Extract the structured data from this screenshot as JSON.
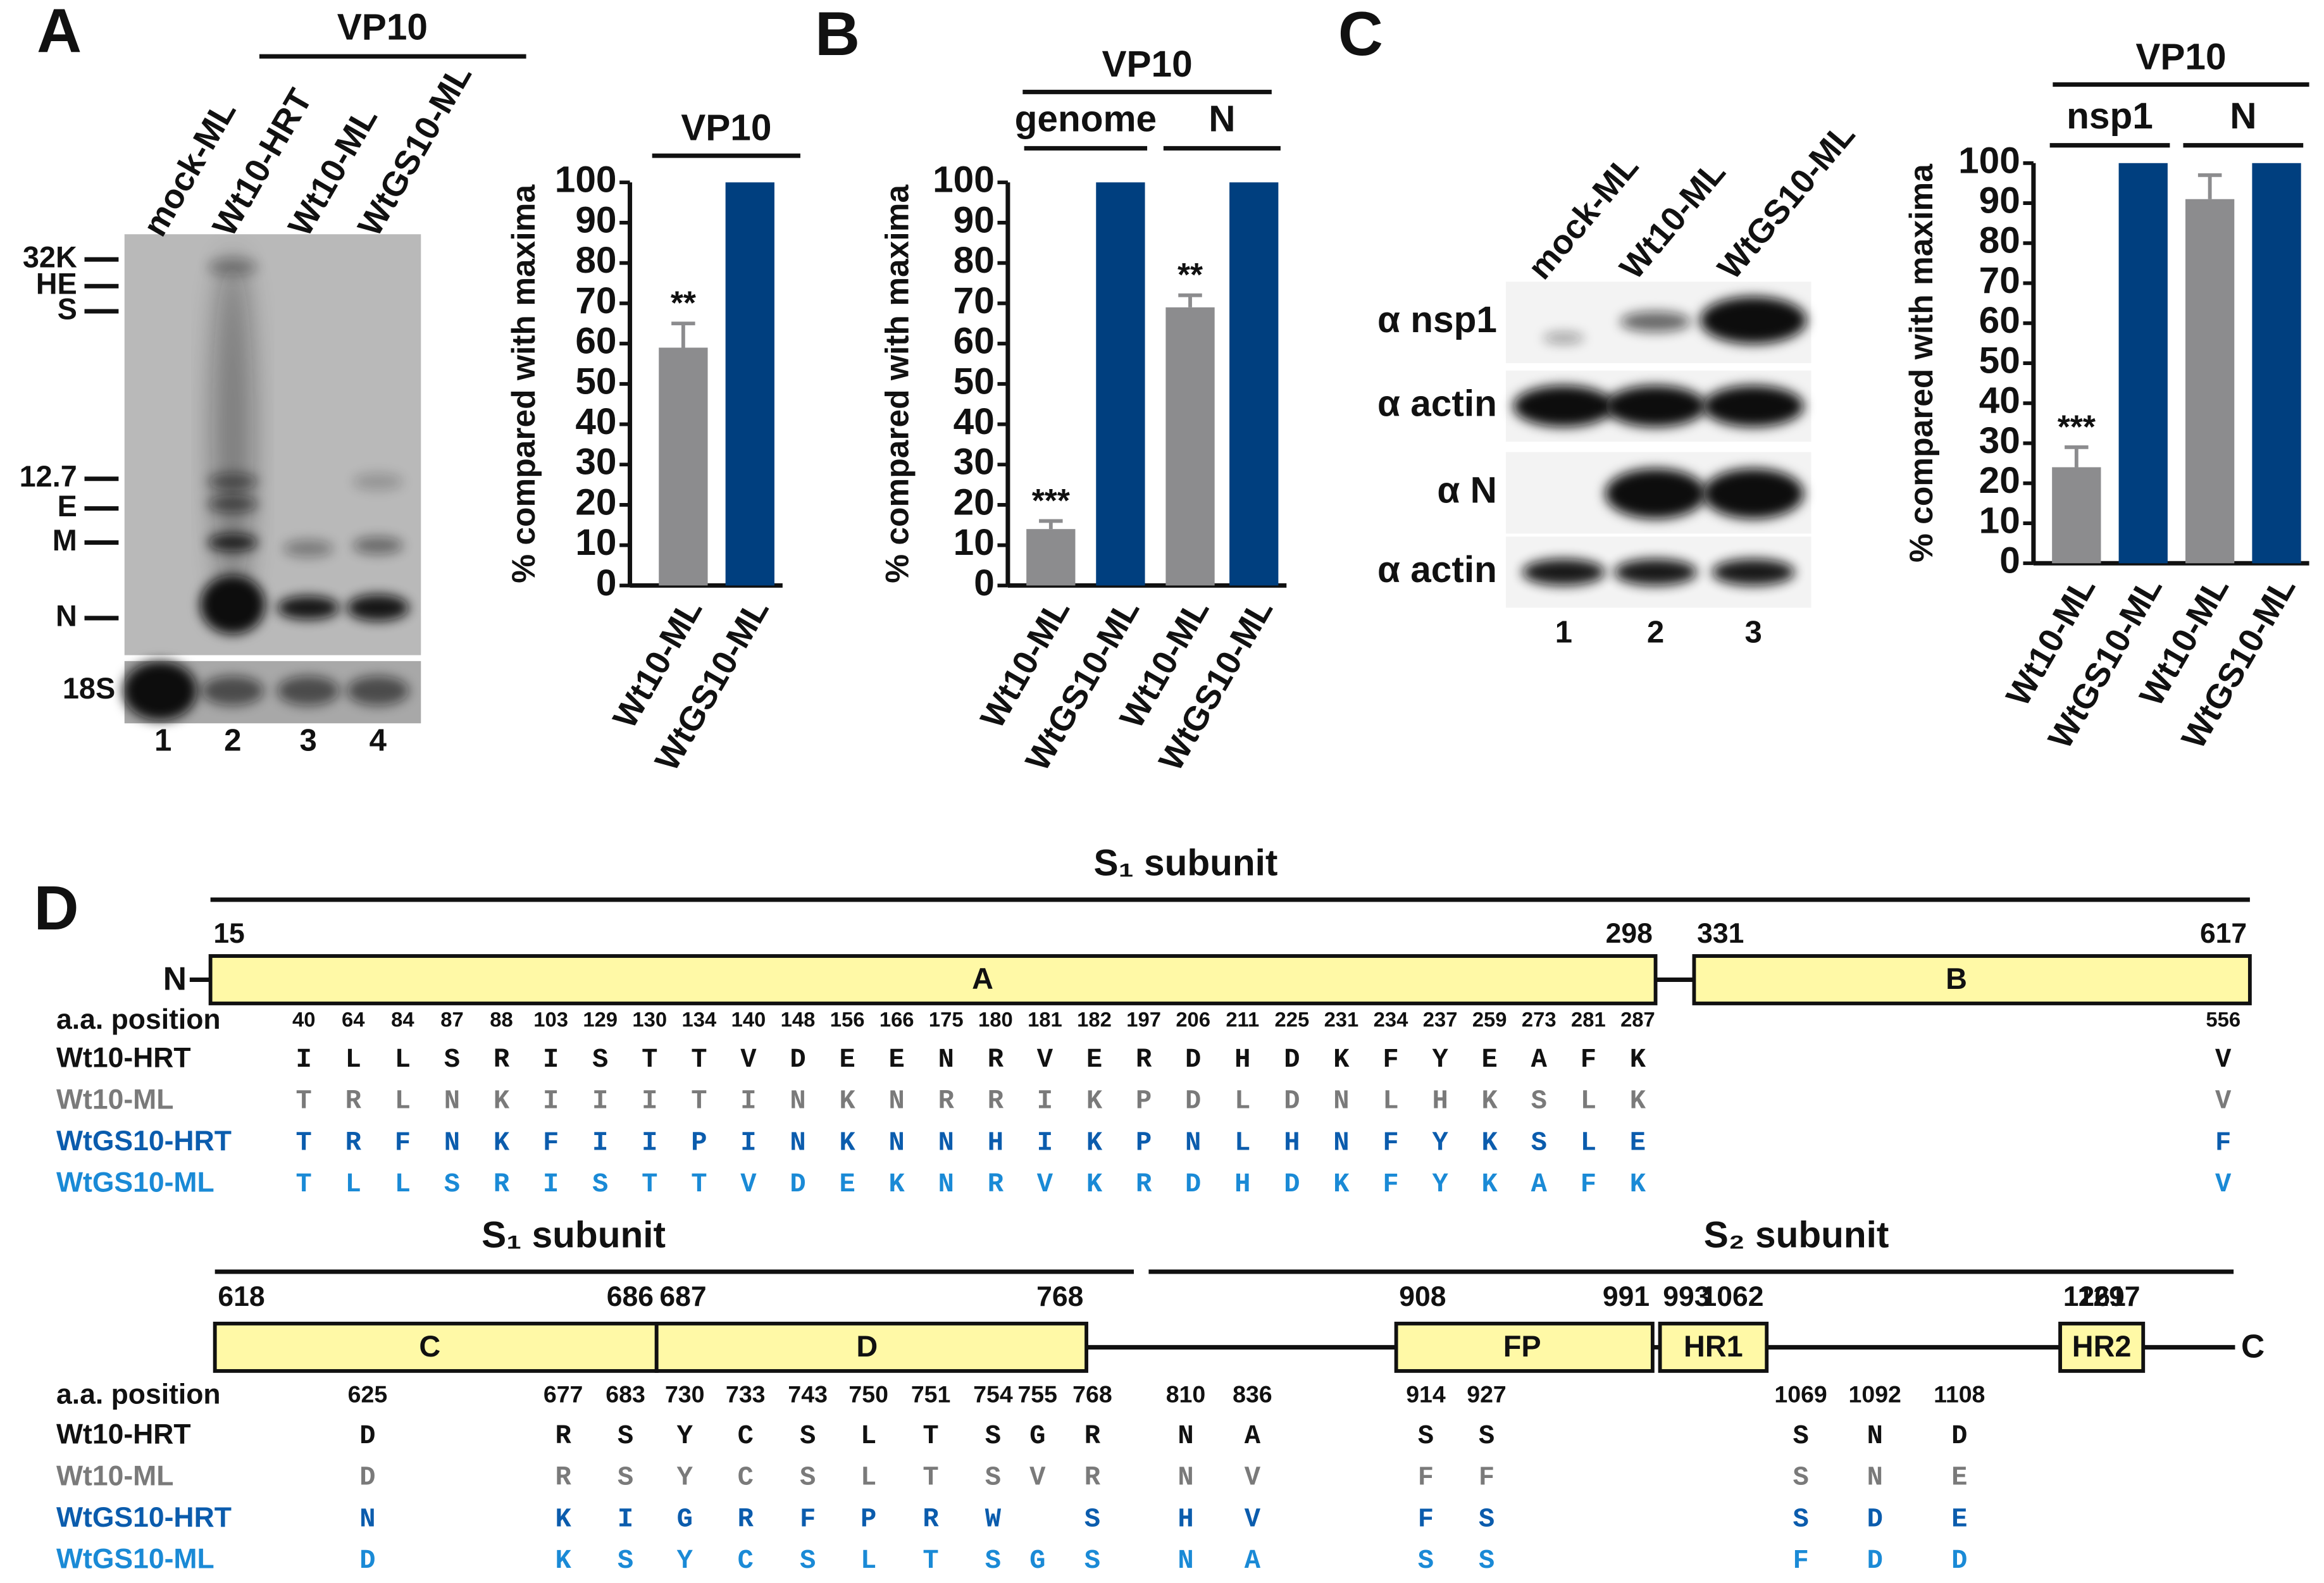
{
  "panel_labels": [
    "A",
    "B",
    "C",
    "D"
  ],
  "chart_data": [
    {
      "type": "bar",
      "title": "VP10",
      "ylabel": "% compared with maxima",
      "categories": [
        "Wt10-ML",
        "WtGS10-ML"
      ],
      "values": [
        59,
        100
      ],
      "errors": [
        6,
        0
      ],
      "colors": [
        "#8c8c8e",
        "#003f7f"
      ],
      "significance": [
        "**",
        null
      ],
      "ylim": [
        0,
        100
      ],
      "yticks": [
        0,
        10,
        20,
        30,
        40,
        50,
        60,
        70,
        80,
        90,
        100
      ]
    },
    {
      "type": "bar",
      "title": "VP10",
      "groups": [
        "genome",
        "N"
      ],
      "ylabel": "% compared with maxima",
      "categories": [
        "Wt10-ML",
        "WtGS10-ML",
        "Wt10-ML",
        "WtGS10-ML"
      ],
      "values": [
        14,
        100,
        69,
        100
      ],
      "errors": [
        2,
        0,
        3,
        0
      ],
      "colors": [
        "#8c8c8e",
        "#003f7f",
        "#8c8c8e",
        "#003f7f"
      ],
      "significance": [
        "***",
        null,
        "**",
        null
      ],
      "ylim": [
        0,
        100
      ],
      "yticks": [
        0,
        10,
        20,
        30,
        40,
        50,
        60,
        70,
        80,
        90,
        100
      ]
    },
    {
      "type": "bar",
      "title": "VP10",
      "groups": [
        "nsp1",
        "N"
      ],
      "ylabel": "% compared with maxima",
      "categories": [
        "Wt10-ML",
        "WtGS10-ML",
        "Wt10-ML",
        "WtGS10-ML"
      ],
      "values": [
        24,
        100,
        91,
        100
      ],
      "errors": [
        5,
        0,
        6,
        0
      ],
      "colors": [
        "#8c8c8e",
        "#003f7f",
        "#8c8c8e",
        "#003f7f"
      ],
      "significance": [
        "***",
        null,
        null,
        null
      ],
      "ylim": [
        0,
        100
      ],
      "yticks": [
        0,
        10,
        20,
        30,
        40,
        50,
        60,
        70,
        80,
        90,
        100
      ]
    }
  ],
  "blots": [
    {
      "lanes": [
        "mock-ML",
        "Wt10-HRT",
        "Wt10-ML",
        "WtGS10-ML"
      ],
      "header": "VP10",
      "markers": [
        "32K",
        "HE",
        "S",
        "12.7",
        "E",
        "M",
        "N"
      ],
      "loading": "18S",
      "lane_numbers": [
        "1",
        "2",
        "3",
        "4"
      ]
    },
    {
      "lanes": [
        "mock-ML",
        "Wt10-ML",
        "WtGS10-ML"
      ],
      "rows": [
        "α nsp1",
        "α actin",
        "α N",
        "α actin"
      ],
      "lane_numbers": [
        "1",
        "2",
        "3"
      ]
    }
  ],
  "diagram": {
    "rows": [
      {
        "subunits": [
          "S₁ subunit"
        ],
        "n_terminus": "N",
        "domains": [
          {
            "name": "A",
            "start": 15,
            "end": 298
          },
          {
            "name": "B",
            "start": 331,
            "end": 617
          }
        ],
        "position_label": "a.a. position",
        "positions": [
          40,
          64,
          84,
          87,
          88,
          103,
          129,
          130,
          134,
          140,
          148,
          156,
          166,
          175,
          180,
          181,
          182,
          197,
          206,
          211,
          225,
          231,
          234,
          237,
          259,
          273,
          281,
          287,
          556
        ],
        "strains": [
          {
            "name": "Wt10-HRT",
            "color": "#111111",
            "residues": [
              "I",
              "L",
              "L",
              "S",
              "R",
              "I",
              "S",
              "T",
              "T",
              "V",
              "D",
              "E",
              "E",
              "N",
              "R",
              "V",
              "E",
              "R",
              "D",
              "H",
              "D",
              "K",
              "F",
              "Y",
              "E",
              "A",
              "F",
              "K",
              "V"
            ]
          },
          {
            "name": "Wt10-ML",
            "color": "#7a7a7a",
            "residues": [
              "T",
              "R",
              "L",
              "N",
              "K",
              "I",
              "I",
              "I",
              "T",
              "I",
              "N",
              "K",
              "N",
              "R",
              "R",
              "I",
              "K",
              "P",
              "D",
              "L",
              "D",
              "N",
              "L",
              "H",
              "K",
              "S",
              "L",
              "K",
              "V"
            ]
          },
          {
            "name": "WtGS10-HRT",
            "color": "#0b5cad",
            "residues": [
              "T",
              "R",
              "F",
              "N",
              "K",
              "F",
              "I",
              "I",
              "P",
              "I",
              "N",
              "K",
              "N",
              "N",
              "H",
              "I",
              "K",
              "P",
              "N",
              "L",
              "H",
              "N",
              "F",
              "Y",
              "K",
              "S",
              "L",
              "E",
              "F"
            ]
          },
          {
            "name": "WtGS10-ML",
            "color": "#1a8ad6",
            "residues": [
              "T",
              "L",
              "L",
              "S",
              "R",
              "I",
              "S",
              "T",
              "T",
              "V",
              "D",
              "E",
              "K",
              "N",
              "R",
              "V",
              "K",
              "R",
              "D",
              "H",
              "D",
              "K",
              "F",
              "Y",
              "K",
              "A",
              "F",
              "K",
              "V"
            ]
          }
        ]
      },
      {
        "subunits": [
          "S₁ subunit",
          "S₂ subunit"
        ],
        "c_terminus": "C",
        "domains": [
          {
            "name": "C",
            "start": 618,
            "end": 686
          },
          {
            "name": "D",
            "start": 687,
            "end": 768
          },
          {
            "name": "FP",
            "start": 908,
            "end": 991
          },
          {
            "name": "HR1",
            "start": 993,
            "end": 1062
          },
          {
            "name": "HR2",
            "start": 1261,
            "end": 1297
          }
        ],
        "position_label": "a.a. position",
        "positions": [
          625,
          677,
          683,
          730,
          733,
          743,
          750,
          751,
          754,
          755,
          768,
          810,
          836,
          914,
          927,
          1069,
          1092,
          1108
        ],
        "strains": [
          {
            "name": "Wt10-HRT",
            "color": "#111111",
            "residues": [
              "D",
              "R",
              "S",
              "Y",
              "C",
              "S",
              "L",
              "T",
              "S",
              "G",
              "R",
              "N",
              "A",
              "S",
              "S",
              "S",
              "N",
              "D"
            ]
          },
          {
            "name": "Wt10-ML",
            "color": "#7a7a7a",
            "residues": [
              "D",
              "R",
              "S",
              "Y",
              "C",
              "S",
              "L",
              "T",
              "S",
              "V",
              "R",
              "N",
              "V",
              "F",
              "F",
              "S",
              "N",
              "E"
            ]
          },
          {
            "name": "WtGS10-HRT",
            "color": "#0b5cad",
            "residues": [
              "N",
              "K",
              "I",
              "G",
              "R",
              "F",
              "P",
              "R",
              "W",
              null,
              "S",
              "H",
              "V",
              "F",
              "S",
              "S",
              "D",
              "E"
            ]
          },
          {
            "name": "WtGS10-ML",
            "color": "#1a8ad6",
            "residues": [
              "D",
              "K",
              "S",
              "Y",
              "C",
              "S",
              "L",
              "T",
              "S",
              "G",
              "S",
              "N",
              "A",
              "S",
              "S",
              "F",
              "D",
              "D"
            ]
          }
        ]
      }
    ]
  }
}
